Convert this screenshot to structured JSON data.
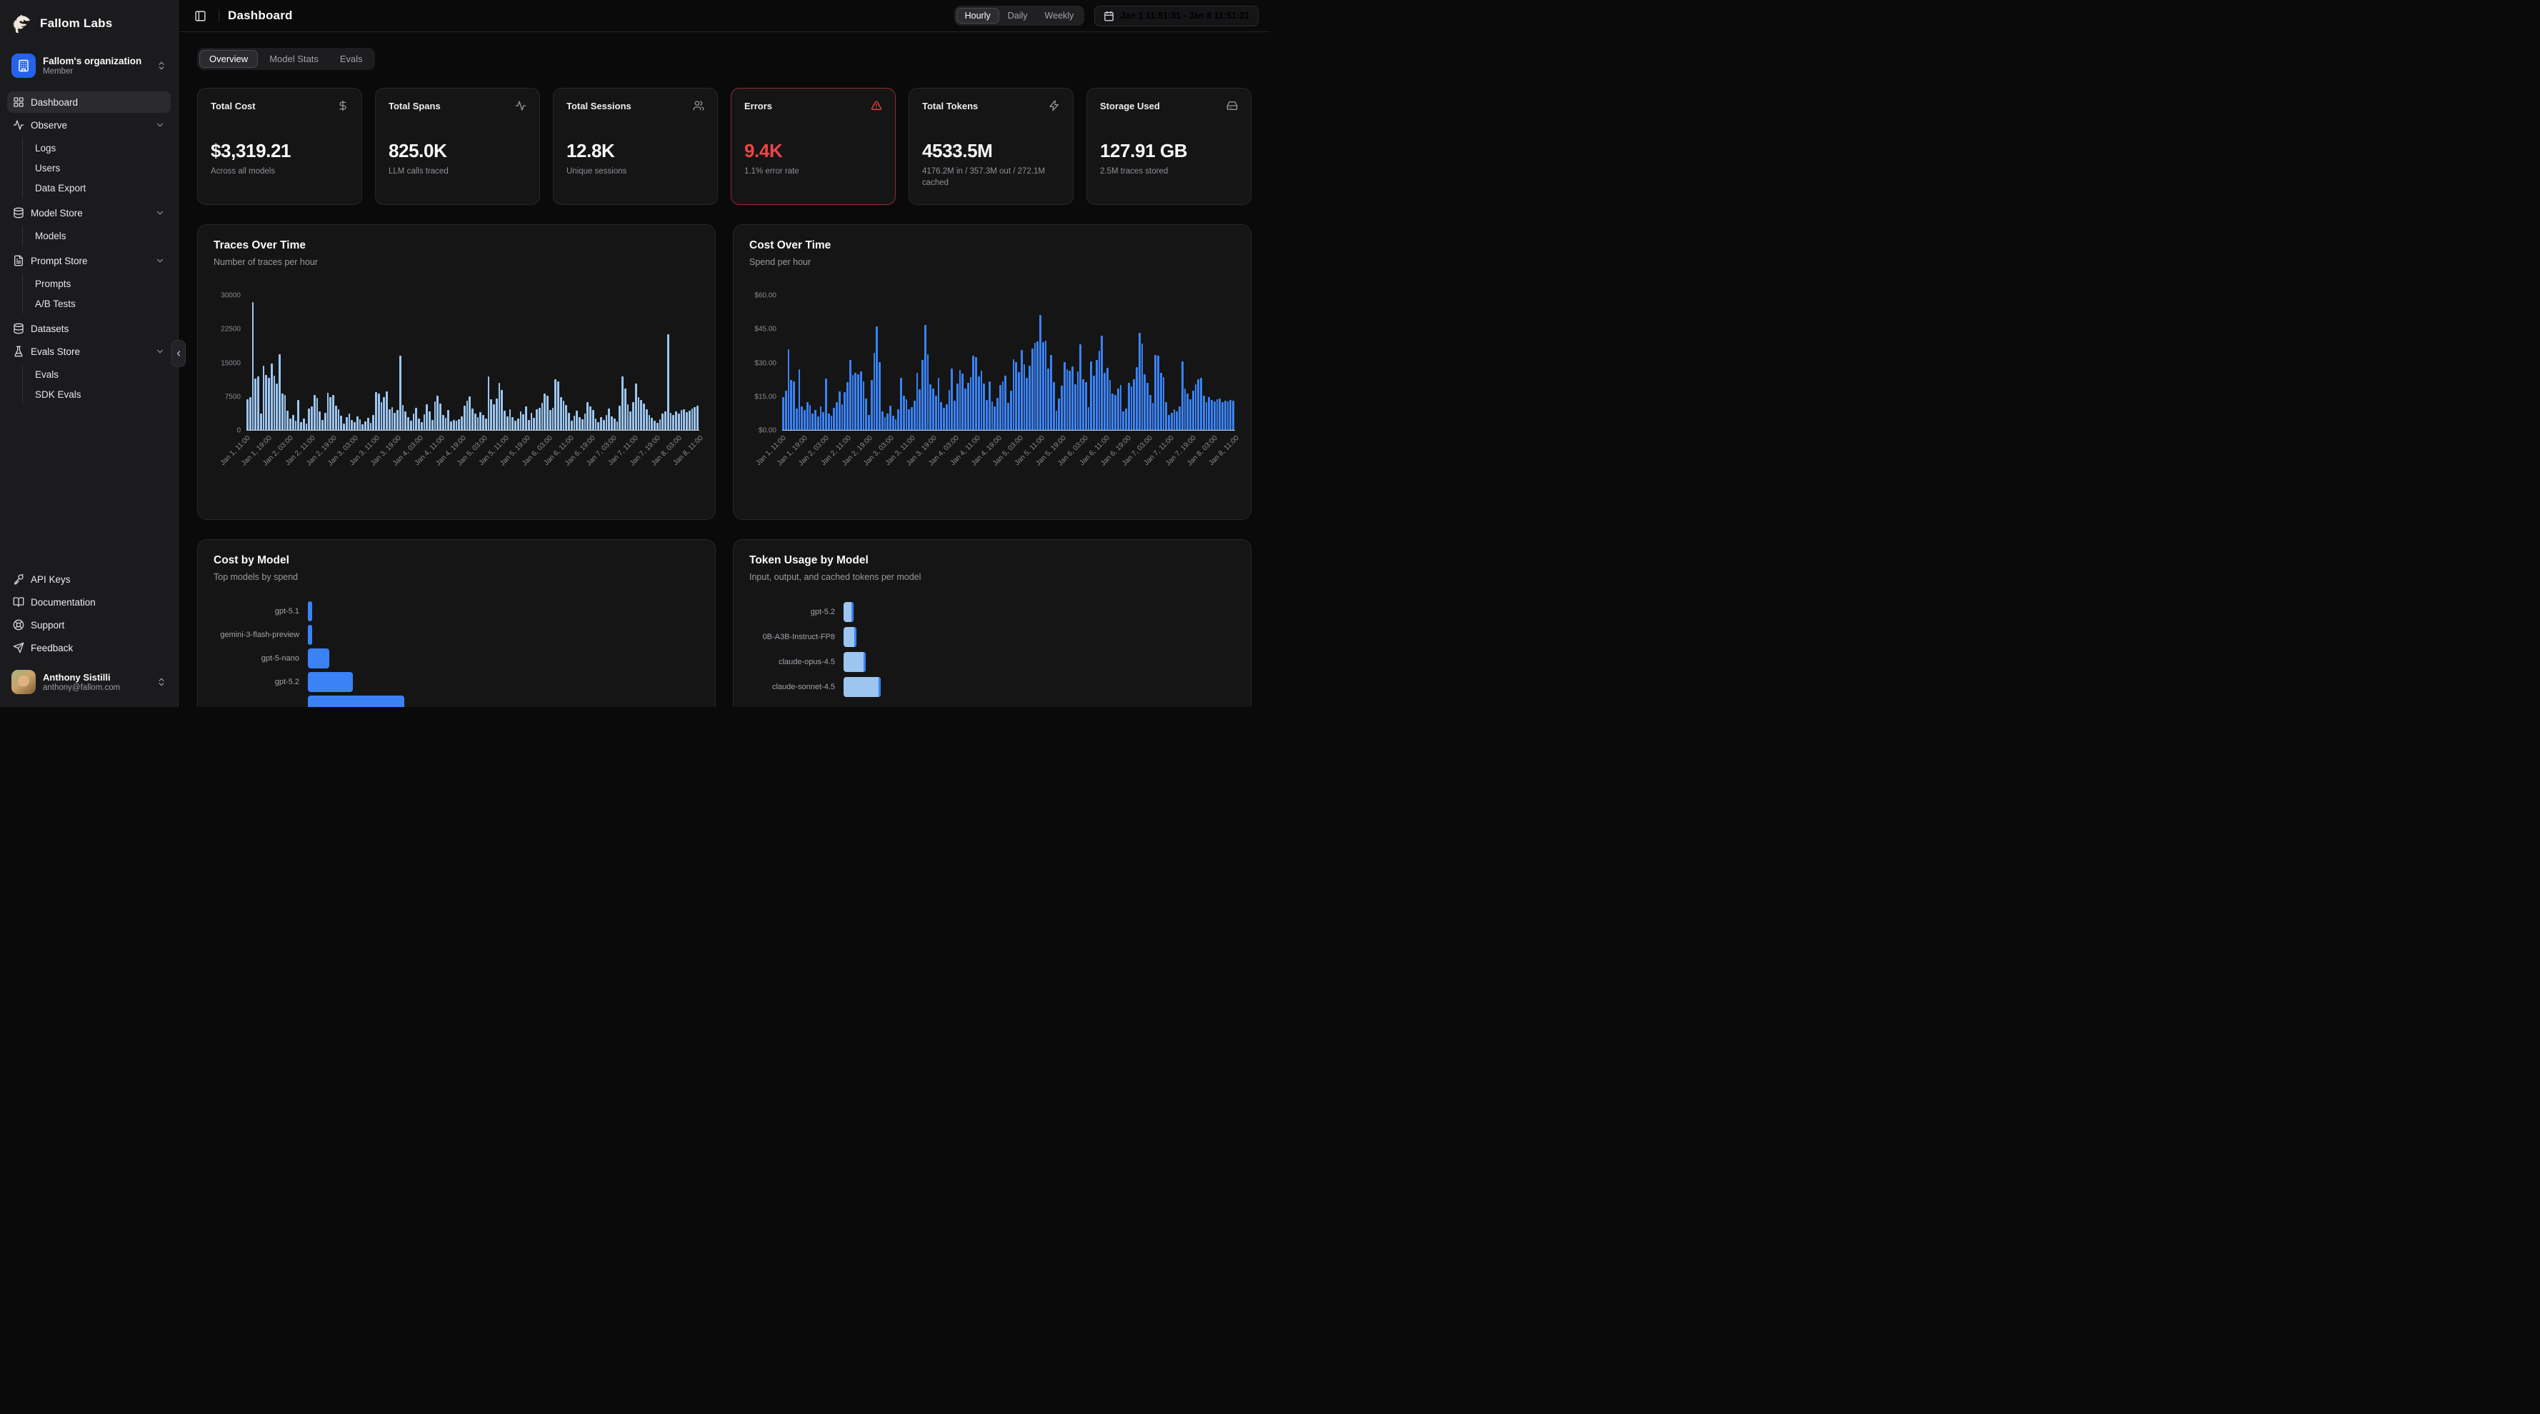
{
  "app": {
    "brand": "Fallom Labs"
  },
  "colors": {
    "accent_blue": "#2563eb",
    "bar_blue": "#3b82f6",
    "bar_light_blue": "#9cc6f0",
    "error_red": "#ef4444"
  },
  "sidebar": {
    "org": {
      "name": "Fallom's organization",
      "role": "Member"
    },
    "nav": [
      {
        "label": "Dashboard",
        "icon": "dashboard-icon",
        "active": true
      },
      {
        "label": "Observe",
        "icon": "activity-icon",
        "group": true,
        "children": [
          "Logs",
          "Users",
          "Data Export"
        ]
      },
      {
        "label": "Model Store",
        "icon": "database-icon",
        "group": true,
        "children": [
          "Models"
        ]
      },
      {
        "label": "Prompt Store",
        "icon": "document-icon",
        "group": true,
        "children": [
          "Prompts",
          "A/B Tests"
        ]
      },
      {
        "label": "Datasets",
        "icon": "database-icon"
      },
      {
        "label": "Evals Store",
        "icon": "flask-icon",
        "group": true,
        "children": [
          "Evals",
          "SDK Evals"
        ]
      }
    ],
    "utility": [
      {
        "label": "API Keys",
        "icon": "key-icon"
      },
      {
        "label": "Documentation",
        "icon": "book-icon"
      },
      {
        "label": "Support",
        "icon": "lifebuoy-icon"
      },
      {
        "label": "Feedback",
        "icon": "send-icon"
      }
    ],
    "user": {
      "name": "Anthony Sistilli",
      "email": "anthony@fallom.com"
    }
  },
  "header": {
    "title": "Dashboard",
    "range_buttons": [
      "Hourly",
      "Daily",
      "Weekly"
    ],
    "active_range": "Hourly",
    "date_range": "Jan 1 11:51:31 - Jan 8 11:51:31"
  },
  "tabs": {
    "items": [
      "Overview",
      "Model Stats",
      "Evals"
    ],
    "active": "Overview"
  },
  "stats": {
    "cards": [
      {
        "title": "Total Cost",
        "icon": "dollar-icon",
        "value": "$3,319.21",
        "sub": "Across all models"
      },
      {
        "title": "Total Spans",
        "icon": "activity-icon",
        "value": "825.0K",
        "sub": "LLM calls traced"
      },
      {
        "title": "Total Sessions",
        "icon": "users-icon",
        "value": "12.8K",
        "sub": "Unique sessions"
      },
      {
        "title": "Errors",
        "icon": "alert-triangle-icon",
        "value": "9.4K",
        "sub": "1.1% error rate",
        "accent": "error"
      },
      {
        "title": "Total Tokens",
        "icon": "zap-icon",
        "value": "4533.5M",
        "sub": "4176.2M in / 357.3M out / 272.1M cached"
      },
      {
        "title": "Storage Used",
        "icon": "hard-drive-icon",
        "value": "127.91 GB",
        "sub": "2.5M traces stored"
      }
    ]
  },
  "chart_data": [
    {
      "type": "bar",
      "title": "Traces Over Time",
      "subtitle": "Number of traces per hour",
      "ylabel": "traces per hour",
      "ylim": [
        0,
        30000
      ],
      "ytick_labels": [
        "0",
        "7500",
        "15000",
        "22500",
        "30000"
      ],
      "grid": false,
      "legend": "none",
      "bar_color": "#9cc6f0",
      "x_tick_labels": [
        "Jan 1, 11:00",
        "Jan 1, 19:00",
        "Jan 2, 03:00",
        "Jan 2, 11:00",
        "Jan 2, 19:00",
        "Jan 3, 03:00",
        "Jan 3, 11:00",
        "Jan 3, 19:00",
        "Jan 4, 03:00",
        "Jan 4, 11:00",
        "Jan 4, 19:00",
        "Jan 5, 03:00",
        "Jan 5, 11:00",
        "Jan 5, 19:00",
        "Jan 6, 03:00",
        "Jan 6, 11:00",
        "Jan 6, 19:00",
        "Jan 7, 03:00",
        "Jan 7, 11:00",
        "Jan 7, 19:00",
        "Jan 8, 03:00",
        "Jan 8, 11:00"
      ],
      "values": [
        6800,
        7400,
        28500,
        11500,
        11900,
        3600,
        14400,
        12300,
        11600,
        14800,
        12100,
        10400,
        16900,
        8200,
        7900,
        4300,
        2500,
        3400,
        2100,
        6700,
        1800,
        2600,
        1500,
        4800,
        5200,
        7800,
        7200,
        4100,
        2200,
        3800,
        8300,
        7400,
        7900,
        5400,
        4600,
        3200,
        1400,
        2800,
        3600,
        2300,
        1700,
        3100,
        2400,
        1300,
        1900,
        2700,
        1600,
        3300,
        8400,
        8100,
        6200,
        7300,
        8600,
        4700,
        5100,
        3900,
        4400,
        16600,
        5600,
        4200,
        2900,
        2100,
        3700,
        4900,
        2600,
        1800,
        3500,
        5800,
        4100,
        2300,
        6400,
        7600,
        5900,
        3400,
        2700,
        4500,
        1900,
        2200,
        2000,
        2400,
        3000,
        5500,
        6600,
        7500,
        4800,
        3600,
        2800,
        4000,
        3300,
        2500,
        11900,
        6800,
        5700,
        7100,
        10600,
        8900,
        4300,
        3100,
        4700,
        2900,
        2000,
        2600,
        4100,
        3500,
        5300,
        2300,
        3900,
        2700,
        4600,
        5000,
        6100,
        8200,
        7700,
        4400,
        4900,
        11300,
        10900,
        7300,
        6500,
        5600,
        3800,
        2100,
        3200,
        4300,
        2800,
        2400,
        3600,
        6300,
        5200,
        4500,
        2600,
        1700,
        2900,
        2200,
        3400,
        4800,
        3100,
        2500,
        1900,
        5400,
        11900,
        9300,
        5800,
        4100,
        6200,
        10400,
        7400,
        6700,
        5900,
        4600,
        3300,
        2700,
        2100,
        1600,
        2400,
        3700,
        4200,
        21400,
        3900,
        3400,
        4100,
        3600,
        4400,
        4700,
        4000,
        4300,
        4800,
        5100,
        5400
      ]
    },
    {
      "type": "bar",
      "title": "Cost Over Time",
      "subtitle": "Spend per hour",
      "ylabel": "spend per hour (USD)",
      "ylim": [
        0,
        60
      ],
      "ytick_labels": [
        "$0.00",
        "$15.00",
        "$30.00",
        "$45.00",
        "$60.00"
      ],
      "grid": false,
      "legend": "none",
      "bar_color": "#3b82f6",
      "x_tick_labels": [
        "Jan 1, 11:00",
        "Jan 1, 19:00",
        "Jan 2, 03:00",
        "Jan 2, 11:00",
        "Jan 2, 19:00",
        "Jan 3, 03:00",
        "Jan 3, 11:00",
        "Jan 3, 19:00",
        "Jan 4, 03:00",
        "Jan 4, 11:00",
        "Jan 4, 19:00",
        "Jan 5, 03:00",
        "Jan 5, 11:00",
        "Jan 5, 19:00",
        "Jan 6, 03:00",
        "Jan 6, 11:00",
        "Jan 6, 19:00",
        "Jan 7, 03:00",
        "Jan 7, 11:00",
        "Jan 7, 19:00",
        "Jan 8, 03:00",
        "Jan 8, 11:00"
      ],
      "values": [
        14.8,
        17.6,
        36.2,
        22.4,
        21.8,
        9.6,
        27.2,
        10.4,
        9.1,
        12.3,
        11.2,
        7.4,
        8.8,
        6.2,
        10.6,
        8.1,
        22.9,
        7.3,
        6.4,
        9.8,
        12.4,
        17.2,
        11.6,
        16.8,
        21.4,
        31.2,
        24.6,
        25.4,
        24.8,
        26.2,
        21.6,
        14.2,
        6.8,
        22.4,
        34.6,
        46.4,
        30.2,
        8.4,
        5.6,
        7.2,
        10.8,
        6.4,
        4.8,
        9.2,
        23.2,
        15.4,
        13.6,
        9.4,
        10.2,
        13.1,
        25.6,
        18.2,
        31.4,
        46.8,
        33.8,
        20.4,
        18.6,
        15.2,
        23.4,
        12.6,
        9.8,
        11.4,
        17.8,
        27.4,
        13.2,
        20.6,
        26.8,
        25.2,
        18.4,
        21.2,
        23.6,
        33.2,
        32.4,
        23.8,
        26.4,
        20.8,
        13.4,
        21.6,
        12.8,
        10.6,
        14.4,
        20.2,
        21.8,
        24.2,
        12.2,
        17.4,
        31.6,
        30.4,
        25.8,
        35.6,
        29.4,
        23.2,
        28.6,
        36.4,
        38.8,
        39.6,
        51.4,
        39.2,
        39.8,
        27.6,
        33.4,
        21.4,
        8.6,
        14.2,
        19.8,
        30.2,
        27.2,
        26.6,
        28.4,
        20.4,
        26.2,
        38.2,
        22.6,
        21.4,
        10.2,
        30.8,
        24.4,
        31.2,
        35.4,
        42.2,
        25.6,
        27.8,
        22.4,
        16.4,
        15.8,
        18.6,
        20.2,
        8.4,
        9.6,
        21.2,
        19.4,
        22.8,
        28.2,
        43.4,
        38.6,
        24.8,
        21.2,
        15.6,
        12.2,
        33.6,
        33.2,
        25.4,
        23.6,
        12.4,
        6.8,
        7.6,
        9.2,
        8.4,
        10.6,
        30.6,
        18.4,
        16.2,
        13.8,
        17.6,
        20.4,
        22.6,
        23.4,
        15.2,
        12.6,
        14.8,
        13.4,
        12.8,
        13.6,
        14.2,
        12.4,
        13.2,
        12.8,
        13.4,
        13.0
      ]
    },
    {
      "type": "bar",
      "orientation": "horizontal",
      "title": "Cost by Model",
      "subtitle": "Top models by spend",
      "categories": [
        "gpt-5.1",
        "gemini-3-flash-preview",
        "gpt-5-nano",
        "gpt-5.2",
        ""
      ],
      "values_relative": [
        0.041,
        0.041,
        0.22,
        0.47,
        1.0
      ],
      "bar_color": "#3b82f6",
      "legend": "none"
    },
    {
      "type": "bar",
      "orientation": "horizontal",
      "title": "Token Usage by Model",
      "subtitle": "Input, output, and cached tokens per model",
      "categories": [
        "gpt-5.2",
        "0B-A3B-Instruct-FP8",
        "claude-opus-4.5",
        "claude-sonnet-4.5"
      ],
      "values_relative": [
        0.26,
        0.34,
        0.6,
        1.0
      ],
      "bar_color": "#9cc6f0",
      "bar_cap_color": "#3b82f6",
      "legend": "none"
    }
  ]
}
